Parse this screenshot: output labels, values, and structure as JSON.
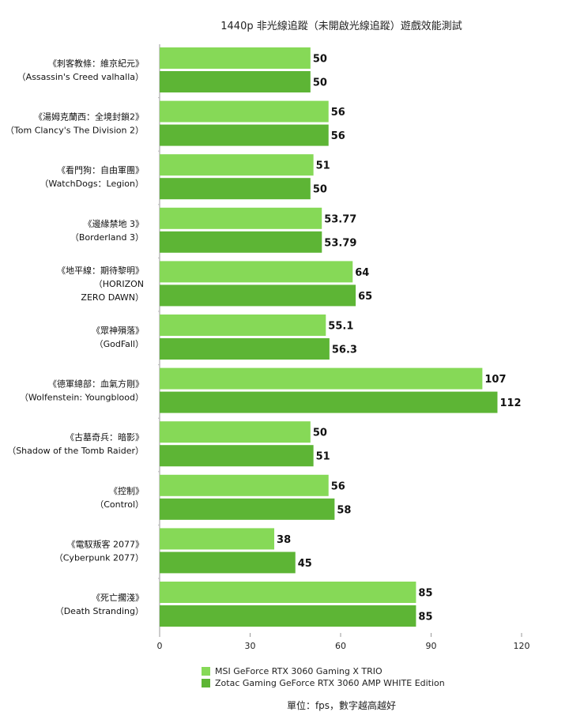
{
  "chart_data": {
    "type": "bar",
    "orientation": "horizontal",
    "title": "1440p 非光線追蹤（未開啟光線追蹤）遊戲效能測試",
    "categories": [
      [
        "《刺客教條：維京紀元》",
        "（Assassin's Creed valhalla）"
      ],
      [
        "《湯姆克蘭西：全境封鎖2》",
        "（Tom Clancy's The Division 2）"
      ],
      [
        "《看門狗：自由軍團》",
        "（WatchDogs：Legion）"
      ],
      [
        "《邊緣禁地 3》",
        "（Borderland 3）"
      ],
      [
        "《地平線：期待黎明》",
        "（HORIZON",
        "ZERO DAWN）"
      ],
      [
        "《眾神殞落》",
        "（GodFall）"
      ],
      [
        "《德軍總部：血氣方剛》",
        "（Wolfenstein: Youngblood）"
      ],
      [
        "《古墓奇兵：暗影》",
        "（Shadow of the Tomb Raider）"
      ],
      [
        "《控制》",
        "（Control）"
      ],
      [
        "《電馭叛客 2077》",
        "（Cyberpunk 2077）"
      ],
      [
        "《死亡擱淺》",
        "（Death Stranding）"
      ]
    ],
    "series": [
      {
        "name": "MSI GeForce RTX 3060 Gaming X TRIO",
        "color": "#86d957",
        "values": [
          50,
          56,
          51,
          53.77,
          64,
          55.1,
          107,
          50,
          56,
          38,
          85
        ]
      },
      {
        "name": "Zotac Gaming GeForce RTX 3060 AMP WHITE Edition",
        "color": "#5db535",
        "values": [
          50,
          56,
          50,
          53.79,
          65,
          56.3,
          112,
          51,
          58,
          45,
          85
        ]
      }
    ],
    "xlim": [
      0,
      120
    ],
    "xticks": [
      0,
      30,
      60,
      90,
      120
    ],
    "grid": false,
    "legend_position": "bottom-left",
    "note": "單位：fps，數字越高越好"
  }
}
